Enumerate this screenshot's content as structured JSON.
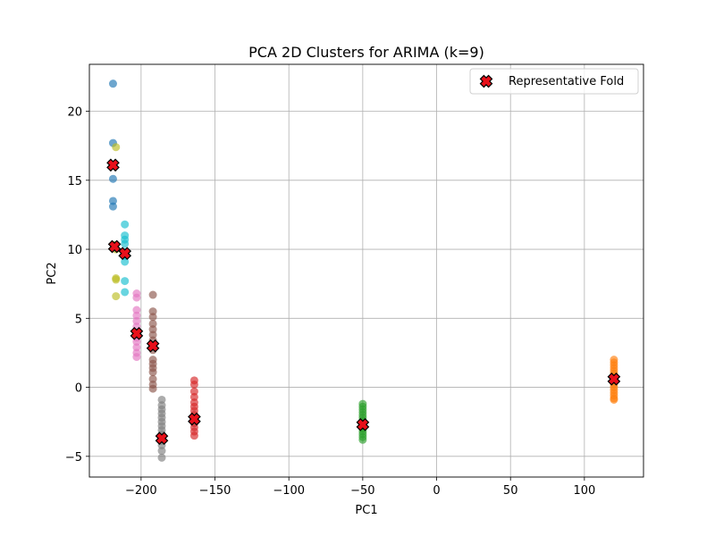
{
  "chart_data": {
    "type": "scatter",
    "title": "PCA 2D Clusters for ARIMA (k=9)",
    "xlabel": "PC1",
    "ylabel": "PC2",
    "xlim": [
      -235,
      140
    ],
    "ylim": [
      -6.5,
      23.4
    ],
    "xticks": [
      -200,
      -150,
      -100,
      -50,
      0,
      50,
      100
    ],
    "yticks": [
      -5,
      0,
      5,
      10,
      15,
      20
    ],
    "grid": true,
    "legend": {
      "position": "top-right",
      "entries": [
        "Representative Fold"
      ]
    },
    "colors": {
      "cluster0": "#1f77b4",
      "cluster1": "#ff7f0e",
      "cluster2": "#2ca02c",
      "cluster3": "#d62728",
      "cluster4": "#8c564b",
      "cluster5": "#e377c2",
      "cluster6": "#7f7f7f",
      "cluster7": "#bcbd22",
      "cluster8": "#17becf",
      "representative": "#e8101a"
    },
    "clusters": [
      {
        "color_key": "cluster0",
        "points": [
          [
            -219,
            22.0
          ],
          [
            -219,
            17.7
          ],
          [
            -219,
            15.1
          ],
          [
            -219,
            13.5
          ],
          [
            -219,
            13.1
          ]
        ]
      },
      {
        "color_key": "cluster1",
        "points": [
          [
            120,
            2.0
          ],
          [
            120,
            1.8
          ],
          [
            120,
            1.6
          ],
          [
            120,
            1.4
          ],
          [
            120,
            1.2
          ],
          [
            120,
            1.0
          ],
          [
            120,
            0.8
          ],
          [
            120,
            0.6
          ],
          [
            120,
            0.4
          ],
          [
            120,
            0.2
          ],
          [
            120,
            0.0
          ],
          [
            120,
            -0.2
          ],
          [
            120,
            -0.4
          ],
          [
            120,
            -0.6
          ],
          [
            120,
            -0.8
          ],
          [
            120,
            -0.9
          ]
        ]
      },
      {
        "color_key": "cluster2",
        "points": [
          [
            -50,
            -1.2
          ],
          [
            -50,
            -1.4
          ],
          [
            -50,
            -1.6
          ],
          [
            -50,
            -1.8
          ],
          [
            -50,
            -2.0
          ],
          [
            -50,
            -2.2
          ],
          [
            -50,
            -2.4
          ],
          [
            -50,
            -2.6
          ],
          [
            -50,
            -2.8
          ],
          [
            -50,
            -3.0
          ],
          [
            -50,
            -3.2
          ],
          [
            -50,
            -3.4
          ],
          [
            -50,
            -3.6
          ],
          [
            -50,
            -3.8
          ]
        ]
      },
      {
        "color_key": "cluster3",
        "points": [
          [
            -164,
            0.5
          ],
          [
            -164,
            0.2
          ],
          [
            -164,
            -0.3
          ],
          [
            -164,
            -0.7
          ],
          [
            -164,
            -1.1
          ],
          [
            -164,
            -1.4
          ],
          [
            -164,
            -1.7
          ],
          [
            -164,
            -2.0
          ],
          [
            -164,
            -2.3
          ],
          [
            -164,
            -2.6
          ],
          [
            -164,
            -2.9
          ],
          [
            -164,
            -3.2
          ],
          [
            -164,
            -3.5
          ]
        ]
      },
      {
        "color_key": "cluster4",
        "points": [
          [
            -192,
            6.7
          ],
          [
            -192,
            5.5
          ],
          [
            -192,
            5.1
          ],
          [
            -192,
            4.6
          ],
          [
            -192,
            4.2
          ],
          [
            -192,
            3.8
          ],
          [
            -192,
            3.4
          ],
          [
            -192,
            3.0
          ],
          [
            -192,
            2.7
          ],
          [
            -192,
            2.0
          ],
          [
            -192,
            1.7
          ],
          [
            -192,
            1.4
          ],
          [
            -192,
            1.1
          ],
          [
            -192,
            0.6
          ],
          [
            -192,
            0.2
          ],
          [
            -192,
            -0.1
          ]
        ]
      },
      {
        "color_key": "cluster5",
        "points": [
          [
            -203,
            6.8
          ],
          [
            -203,
            6.5
          ],
          [
            -203,
            5.6
          ],
          [
            -203,
            5.2
          ],
          [
            -203,
            4.8
          ],
          [
            -203,
            4.4
          ],
          [
            -203,
            3.6
          ],
          [
            -203,
            3.3
          ],
          [
            -203,
            2.9
          ],
          [
            -203,
            2.5
          ],
          [
            -203,
            2.2
          ]
        ]
      },
      {
        "color_key": "cluster6",
        "points": [
          [
            -186,
            -0.9
          ],
          [
            -186,
            -1.3
          ],
          [
            -186,
            -1.6
          ],
          [
            -186,
            -1.9
          ],
          [
            -186,
            -2.2
          ],
          [
            -186,
            -2.5
          ],
          [
            -186,
            -2.8
          ],
          [
            -186,
            -3.1
          ],
          [
            -186,
            -3.4
          ],
          [
            -186,
            -3.9
          ],
          [
            -186,
            -4.2
          ],
          [
            -186,
            -4.6
          ],
          [
            -186,
            -5.1
          ]
        ]
      },
      {
        "color_key": "cluster7",
        "points": [
          [
            -217,
            17.4
          ],
          [
            -218,
            10.3
          ],
          [
            -217,
            10.0
          ],
          [
            -217,
            7.9
          ],
          [
            -217,
            7.8
          ],
          [
            -217,
            6.6
          ]
        ]
      },
      {
        "color_key": "cluster8",
        "points": [
          [
            -211,
            11.8
          ],
          [
            -211,
            11.0
          ],
          [
            -211,
            10.7
          ],
          [
            -211,
            10.4
          ],
          [
            -211,
            9.8
          ],
          [
            -211,
            9.5
          ],
          [
            -211,
            9.1
          ],
          [
            -211,
            7.7
          ],
          [
            -211,
            6.9
          ]
        ]
      }
    ],
    "representative": [
      [
        -219,
        16.1
      ],
      [
        -218,
        10.2
      ],
      [
        -211,
        9.7
      ],
      [
        -203,
        3.9
      ],
      [
        -192,
        3.0
      ],
      [
        -186,
        -3.7
      ],
      [
        -164,
        -2.3
      ],
      [
        -50,
        -2.7
      ],
      [
        120,
        0.6
      ]
    ]
  }
}
